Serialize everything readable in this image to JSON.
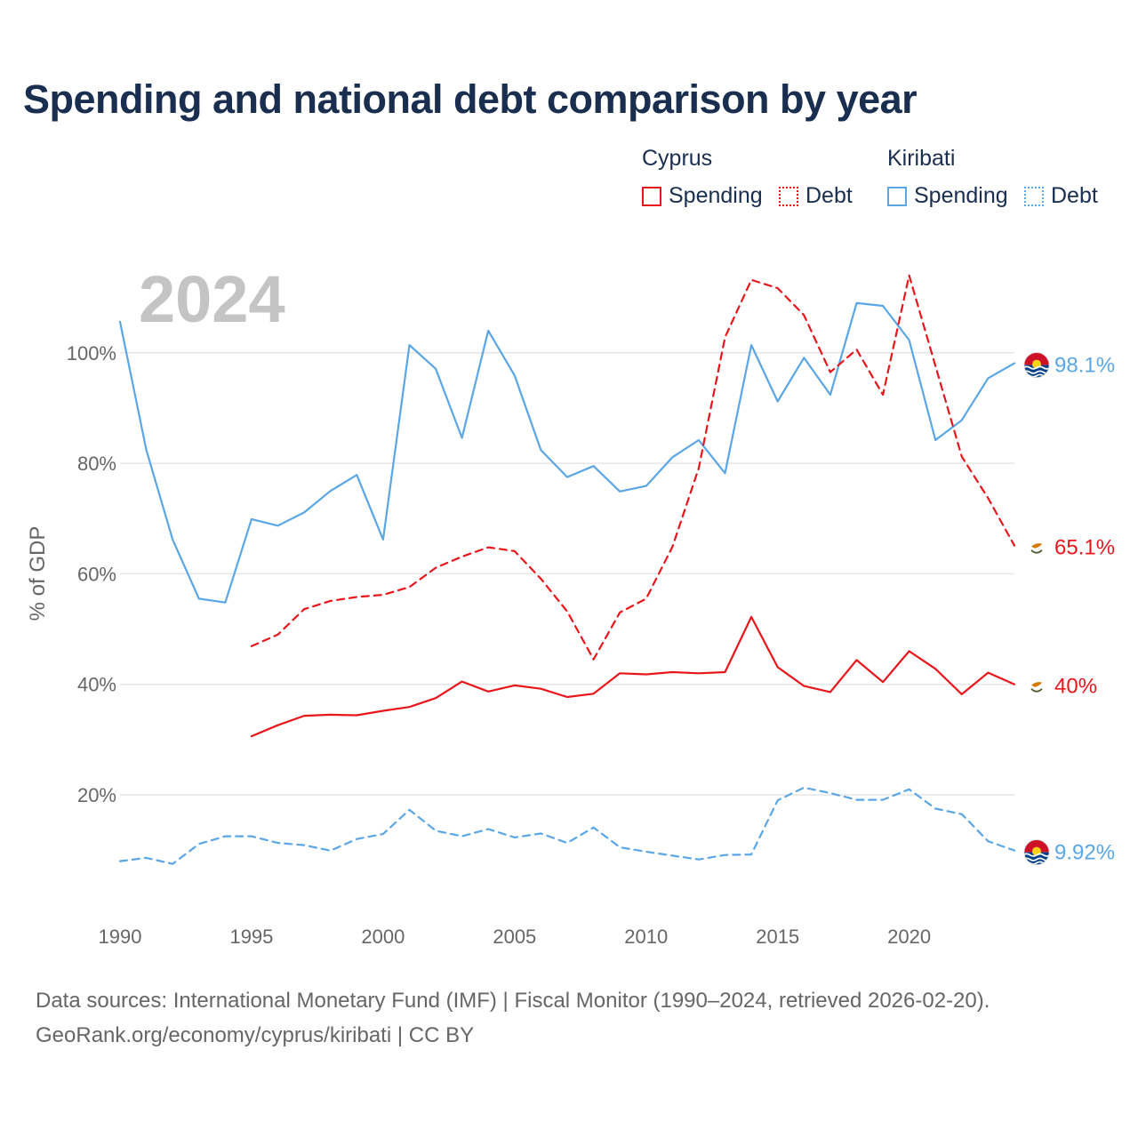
{
  "title": "Spending and national debt comparison by year",
  "legend": {
    "groups": [
      {
        "country": "Cyprus",
        "items": [
          {
            "label": "Spending",
            "style": "solid"
          },
          {
            "label": "Debt",
            "style": "dotted"
          }
        ],
        "color": "#e8161b"
      },
      {
        "country": "Kiribati",
        "items": [
          {
            "label": "Spending",
            "style": "solid"
          },
          {
            "label": "Debt",
            "style": "dotted"
          }
        ],
        "color": "#5aa6e6"
      }
    ]
  },
  "year_overlay": "2024",
  "footer": {
    "line1": "Data sources: International Monetary Fund (IMF) | Fiscal Monitor (1990–2024, retrieved 2026-02-20).",
    "line2": "GeoRank.org/economy/cyprus/kiribati | CC BY"
  },
  "colors": {
    "cyprus": "#e8161b",
    "kiribati": "#5aa6e6",
    "grid": "#e6e6e6",
    "axis_text": "#666666",
    "year_overlay": "#c4c4c4"
  },
  "chart_data": {
    "type": "line",
    "ylabel": "% of GDP",
    "xlabel": "",
    "xlim": [
      1990,
      2024
    ],
    "ylim": [
      0,
      115
    ],
    "x_ticks": [
      1990,
      1995,
      2000,
      2005,
      2010,
      2015,
      2020
    ],
    "y_ticks": [
      {
        "value": 20,
        "label": "20%"
      },
      {
        "value": 40,
        "label": "40%"
      },
      {
        "value": 60,
        "label": "60%"
      },
      {
        "value": 80,
        "label": "80%"
      },
      {
        "value": 100,
        "label": "100%"
      }
    ],
    "series": [
      {
        "name": "Kiribati Spending",
        "country": "Kiribati",
        "metric": "Spending",
        "dash": "solid",
        "color": "#5aa6e6",
        "end_label": "98.1%",
        "flag": "kiribati",
        "x": [
          1990,
          1991,
          1992,
          1993,
          1994,
          1995,
          1996,
          1997,
          1998,
          1999,
          2000,
          2001,
          2002,
          2003,
          2004,
          2005,
          2006,
          2007,
          2008,
          2009,
          2010,
          2011,
          2012,
          2013,
          2014,
          2015,
          2016,
          2017,
          2018,
          2019,
          2020,
          2021,
          2022,
          2023,
          2024
        ],
        "values": [
          105.6,
          82.4,
          66.2,
          55.5,
          54.8,
          69.9,
          68.7,
          71.1,
          75.0,
          77.9,
          66.2,
          101.4,
          97.1,
          84.6,
          104.0,
          95.9,
          82.4,
          77.5,
          79.5,
          74.9,
          75.9,
          81.1,
          84.2,
          78.2,
          101.4,
          91.2,
          99.1,
          92.4,
          109.0,
          108.5,
          102.3,
          84.2,
          87.8,
          95.4,
          98.1
        ]
      },
      {
        "name": "Kiribati Debt",
        "country": "Kiribati",
        "metric": "Debt",
        "dash": "dashed",
        "color": "#5aa6e6",
        "end_label": "9.92%",
        "flag": "kiribati",
        "x": [
          1990,
          1991,
          1992,
          1993,
          1994,
          1995,
          1996,
          1997,
          1998,
          1999,
          2000,
          2001,
          2002,
          2003,
          2004,
          2005,
          2006,
          2007,
          2008,
          2009,
          2010,
          2011,
          2012,
          2013,
          2014,
          2015,
          2016,
          2017,
          2018,
          2019,
          2020,
          2021,
          2022,
          2023,
          2024
        ],
        "values": [
          8.0,
          8.6,
          7.5,
          11.1,
          12.5,
          12.5,
          11.3,
          10.9,
          9.9,
          12.0,
          12.9,
          17.3,
          13.5,
          12.5,
          13.8,
          12.3,
          13.0,
          11.3,
          14.1,
          10.5,
          9.7,
          9.0,
          8.3,
          9.1,
          9.2,
          19.0,
          21.3,
          20.3,
          19.1,
          19.1,
          21.0,
          17.5,
          16.5,
          11.6,
          9.92
        ]
      },
      {
        "name": "Cyprus Spending",
        "country": "Cyprus",
        "metric": "Spending",
        "dash": "solid",
        "color": "#e8161b",
        "end_label": "40%",
        "flag": "cyprus",
        "x": [
          1995,
          1996,
          1997,
          1998,
          1999,
          2000,
          2001,
          2002,
          2003,
          2004,
          2005,
          2006,
          2007,
          2008,
          2009,
          2010,
          2011,
          2012,
          2013,
          2014,
          2015,
          2016,
          2017,
          2018,
          2019,
          2020,
          2021,
          2022,
          2023,
          2024
        ],
        "values": [
          30.6,
          32.6,
          34.3,
          34.5,
          34.4,
          35.2,
          35.9,
          37.5,
          40.5,
          38.7,
          39.8,
          39.2,
          37.7,
          38.3,
          42.0,
          41.8,
          42.2,
          42.0,
          42.2,
          52.2,
          43.1,
          39.7,
          38.6,
          44.4,
          40.4,
          46.0,
          42.8,
          38.2,
          42.1,
          40.0
        ]
      },
      {
        "name": "Cyprus Debt",
        "country": "Cyprus",
        "metric": "Debt",
        "dash": "dashed",
        "color": "#e8161b",
        "end_label": "65.1%",
        "flag": "cyprus",
        "x": [
          1995,
          1996,
          1997,
          1998,
          1999,
          2000,
          2001,
          2002,
          2003,
          2004,
          2005,
          2006,
          2007,
          2008,
          2009,
          2010,
          2011,
          2012,
          2013,
          2014,
          2015,
          2016,
          2017,
          2018,
          2019,
          2020,
          2021,
          2022,
          2023,
          2024
        ],
        "values": [
          46.9,
          49.0,
          53.6,
          55.1,
          55.8,
          56.2,
          57.6,
          61.1,
          63.1,
          64.8,
          64.1,
          59.1,
          53.2,
          44.5,
          53.0,
          55.5,
          64.9,
          79.1,
          102.8,
          113.2,
          111.7,
          106.8,
          96.5,
          100.6,
          92.4,
          114.0,
          97.6,
          81.2,
          73.7,
          65.1
        ]
      }
    ]
  }
}
